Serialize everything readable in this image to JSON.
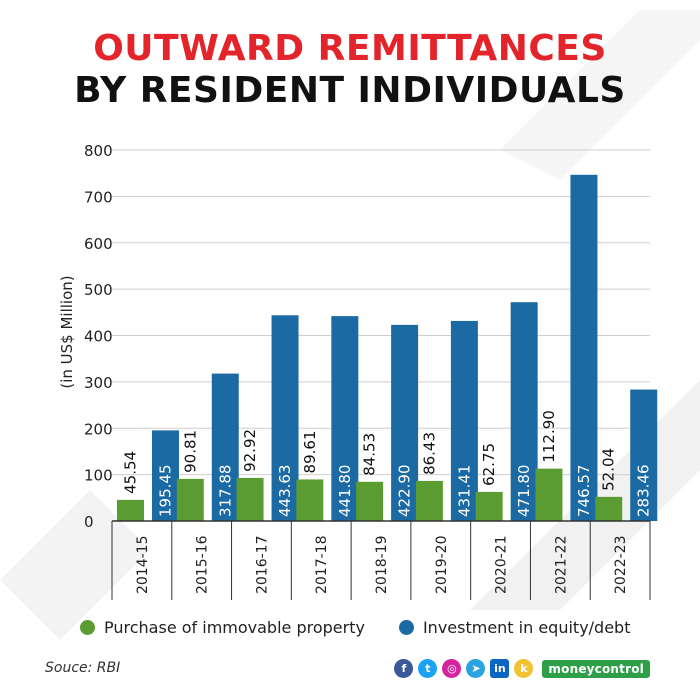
{
  "header": {
    "title_line1": "OUTWARD REMITTANCES",
    "title_line2": "BY RESIDENT INDIVIDUALS"
  },
  "chart_data": {
    "type": "bar",
    "title": "OUTWARD REMITTANCES BY RESIDENT INDIVIDUALS",
    "xlabel": "",
    "ylabel": "(in US$ Million)",
    "ylim": [
      0,
      800
    ],
    "yticks": [
      0,
      100,
      200,
      300,
      400,
      500,
      600,
      700,
      800
    ],
    "grid": true,
    "legend_position": "bottom",
    "categories": [
      "2014-15",
      "2015-16",
      "2016-17",
      "2017-18",
      "2018-19",
      "2019-20",
      "2020-21",
      "2021-22",
      "2022-23"
    ],
    "series": [
      {
        "name": "Purchase of immovable property",
        "color": "#5a9b32",
        "values": [
          45.54,
          90.81,
          92.92,
          89.61,
          84.53,
          86.43,
          62.75,
          112.9,
          52.04
        ],
        "labels": [
          "45.54",
          "90.81",
          "92.92",
          "89.61",
          "84.53",
          "86.43",
          "62.75",
          "112.90",
          "52.04"
        ]
      },
      {
        "name": "Investment in equity/debt",
        "color": "#1c6aa3",
        "values": [
          195.45,
          317.88,
          443.63,
          441.8,
          422.9,
          431.41,
          471.8,
          746.57,
          283.46
        ],
        "labels": [
          "195.45",
          "317.88",
          "443.63",
          "441.80",
          "422.90",
          "431.41",
          "471.80",
          "746.57",
          "283.46"
        ]
      }
    ]
  },
  "legend": {
    "item1_label": "Purchase of immovable property",
    "item2_label": "Investment in equity/debt"
  },
  "footer": {
    "source": "Souce: RBI",
    "social_icons": [
      {
        "name": "facebook-icon",
        "glyph": "f",
        "color": "#3b5998"
      },
      {
        "name": "twitter-icon",
        "glyph": "t",
        "color": "#1da1f2"
      },
      {
        "name": "instagram-icon",
        "glyph": "◎",
        "color": "#d6249f"
      },
      {
        "name": "telegram-icon",
        "glyph": "➤",
        "color": "#2aa3df"
      },
      {
        "name": "linkedin-icon",
        "glyph": "in",
        "color": "#0a66c2"
      },
      {
        "name": "koo-icon",
        "glyph": "k",
        "color": "#f2c330"
      }
    ],
    "brand": "moneycontrol"
  }
}
